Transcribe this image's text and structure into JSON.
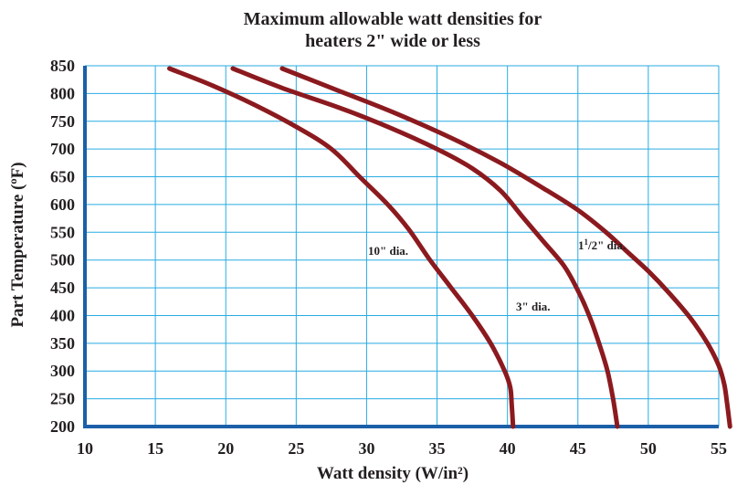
{
  "chart_data": {
    "type": "line",
    "title_lines": [
      "Maximum allowable watt densities for",
      "heaters 2\" wide or less"
    ],
    "xlabel": "Watt density (W/in²)",
    "ylabel": "Part Temperature (ºF)",
    "xlim": [
      10,
      55
    ],
    "ylim": [
      200,
      850
    ],
    "x_ticks": [
      "10",
      "15",
      "20",
      "25",
      "30",
      "35",
      "40",
      "45",
      "50",
      "55"
    ],
    "y_ticks": [
      "200",
      "250",
      "300",
      "350",
      "400",
      "450",
      "500",
      "550",
      "600",
      "650",
      "700",
      "750",
      "800",
      "850"
    ],
    "grid": true,
    "colors": {
      "grid": "#29abe2",
      "axis": "#1b5fa8",
      "curve": "#8b1a1f",
      "text": "#231f20"
    },
    "series": [
      {
        "label": "10\" dia.",
        "points": [
          [
            16,
            845
          ],
          [
            19,
            815
          ],
          [
            22,
            780
          ],
          [
            25,
            740
          ],
          [
            27.5,
            700
          ],
          [
            29.5,
            650
          ],
          [
            31.5,
            600
          ],
          [
            33,
            555
          ],
          [
            34.5,
            500
          ],
          [
            36,
            450
          ],
          [
            37.5,
            400
          ],
          [
            38.8,
            350
          ],
          [
            39.8,
            300
          ],
          [
            40.2,
            270
          ],
          [
            40.3,
            240
          ],
          [
            40.4,
            200
          ]
        ]
      },
      {
        "label": "3\" dia.",
        "points": [
          [
            20.5,
            845
          ],
          [
            24,
            810
          ],
          [
            28,
            775
          ],
          [
            31.5,
            740
          ],
          [
            35,
            700
          ],
          [
            37.5,
            665
          ],
          [
            39.5,
            625
          ],
          [
            41,
            580
          ],
          [
            42.5,
            535
          ],
          [
            44,
            490
          ],
          [
            45,
            445
          ],
          [
            45.8,
            400
          ],
          [
            46.5,
            350
          ],
          [
            47.1,
            300
          ],
          [
            47.5,
            250
          ],
          [
            47.8,
            200
          ]
        ]
      },
      {
        "label": "1",
        "label_sup": "1",
        "label_mid": "/2\" dia.",
        "points": [
          [
            24,
            845
          ],
          [
            28,
            805
          ],
          [
            32,
            765
          ],
          [
            36,
            720
          ],
          [
            39.5,
            675
          ],
          [
            42.5,
            630
          ],
          [
            45,
            590
          ],
          [
            47,
            550
          ],
          [
            48.5,
            515
          ],
          [
            50,
            480
          ],
          [
            51.5,
            440
          ],
          [
            53,
            395
          ],
          [
            54.2,
            350
          ],
          [
            55,
            310
          ],
          [
            55.4,
            275
          ],
          [
            55.6,
            240
          ],
          [
            55.8,
            200
          ]
        ]
      }
    ]
  }
}
